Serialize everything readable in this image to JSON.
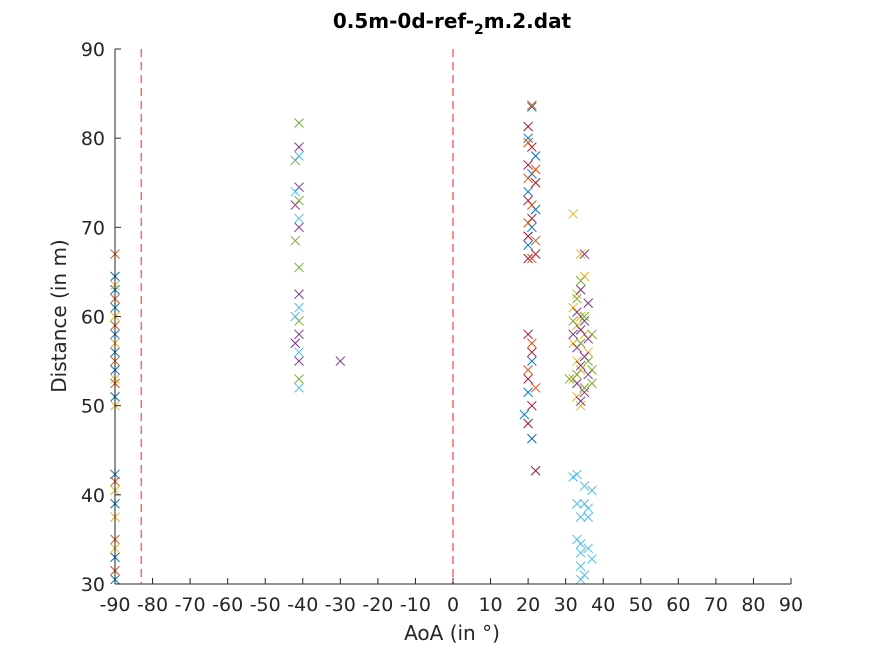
{
  "chart_data": {
    "type": "scatter",
    "title_main": "0.5m-0d-ref-",
    "title_sub": "2",
    "title_tail": "m.2.dat",
    "xlabel": "AoA (in °)",
    "ylabel": "Distance (in m)",
    "xlim": [
      -90,
      90
    ],
    "ylim": [
      30,
      90
    ],
    "xticks": [
      "-90",
      "-80",
      "-70",
      "-60",
      "-50",
      "-40",
      "-30",
      "-20",
      "-10",
      "0",
      "10",
      "20",
      "30",
      "40",
      "50",
      "60",
      "70",
      "80",
      "90"
    ],
    "yticks": [
      "30",
      "40",
      "50",
      "60",
      "70",
      "80",
      "90"
    ],
    "grid": false,
    "marker": "x",
    "vlines": [
      {
        "x": -83,
        "color": "#ff6666",
        "style": "dashed"
      },
      {
        "x": 0,
        "color": "#ff6666",
        "style": "dashed"
      }
    ],
    "colors": [
      "#0072bd",
      "#d95319",
      "#edb120",
      "#7e2f8e",
      "#77ac30",
      "#4dbeee",
      "#a2142f"
    ],
    "series": [
      {
        "values": [
          [
            -90,
            64.5
          ],
          [
            -90,
            63
          ],
          [
            -90,
            61
          ],
          [
            -90,
            58
          ],
          [
            -90,
            56
          ],
          [
            -90,
            54
          ],
          [
            -90,
            51
          ],
          [
            -90,
            42.3
          ],
          [
            -90,
            39
          ],
          [
            -90,
            33
          ],
          [
            -90,
            30.5
          ]
        ]
      },
      {
        "values": [
          [
            -90,
            67
          ],
          [
            -90,
            62
          ],
          [
            -90,
            59
          ],
          [
            -90,
            55
          ],
          [
            -90,
            52.5
          ],
          [
            -90,
            41.5
          ],
          [
            -90,
            35
          ],
          [
            -90,
            31.5
          ]
        ]
      },
      {
        "values": [
          [
            -90,
            63.5
          ],
          [
            -90,
            60
          ],
          [
            -90,
            57
          ],
          [
            -90,
            53
          ],
          [
            -90,
            50
          ],
          [
            -90,
            40.5
          ],
          [
            -90,
            37.5
          ],
          [
            -90,
            34
          ]
        ]
      },
      {
        "values": [
          [
            -41,
            79
          ],
          [
            -41,
            74.5
          ],
          [
            -41,
            70
          ],
          [
            -41,
            62.5
          ],
          [
            -41,
            58
          ],
          [
            -41,
            55
          ],
          [
            -30,
            55
          ],
          [
            -42,
            72.5
          ],
          [
            -42,
            57
          ]
        ]
      },
      {
        "values": [
          [
            -41,
            81.7
          ],
          [
            -41,
            73
          ],
          [
            -41,
            65.5
          ],
          [
            -41,
            59.5
          ],
          [
            -41,
            53
          ],
          [
            -42,
            68.5
          ],
          [
            -42,
            77.5
          ]
        ]
      },
      {
        "values": [
          [
            -41,
            78
          ],
          [
            -41,
            71
          ],
          [
            -41,
            61
          ],
          [
            -41,
            56
          ],
          [
            -41,
            52
          ],
          [
            -42,
            74
          ],
          [
            -42,
            60
          ]
        ]
      },
      {
        "values": [
          [
            20,
            81.3
          ],
          [
            21,
            79
          ],
          [
            20,
            77
          ],
          [
            22,
            75
          ],
          [
            20,
            73
          ],
          [
            21,
            71
          ],
          [
            20,
            69
          ],
          [
            22,
            67
          ],
          [
            20,
            66.5
          ],
          [
            20,
            58
          ],
          [
            21,
            56
          ],
          [
            20,
            53
          ],
          [
            21,
            50
          ],
          [
            20,
            48
          ],
          [
            22,
            42.7
          ]
        ]
      },
      {
        "values": [
          [
            21,
            83.5
          ],
          [
            20,
            80
          ],
          [
            22,
            78
          ],
          [
            21,
            76
          ],
          [
            20,
            74
          ],
          [
            22,
            72
          ],
          [
            21,
            70
          ],
          [
            20,
            68
          ],
          [
            21,
            55
          ],
          [
            20,
            51.5
          ],
          [
            21,
            46.3
          ],
          [
            19,
            49
          ]
        ]
      },
      {
        "values": [
          [
            21,
            83.7
          ],
          [
            20,
            79.5
          ],
          [
            22,
            76.5
          ],
          [
            20,
            75.5
          ],
          [
            21,
            72.5
          ],
          [
            20,
            70.5
          ],
          [
            22,
            68.5
          ],
          [
            21,
            66.5
          ],
          [
            21,
            57
          ],
          [
            20,
            54
          ],
          [
            22,
            52
          ]
        ]
      },
      {
        "values": [
          [
            32,
            71.5
          ],
          [
            34,
            67
          ],
          [
            35,
            64.5
          ],
          [
            33,
            62.5
          ],
          [
            32,
            61
          ],
          [
            34,
            60
          ],
          [
            33,
            59
          ],
          [
            35,
            58
          ],
          [
            32,
            57
          ],
          [
            36,
            56
          ],
          [
            33,
            55
          ],
          [
            34,
            54
          ],
          [
            32,
            53
          ],
          [
            35,
            52
          ],
          [
            33,
            51
          ],
          [
            34,
            50
          ]
        ]
      },
      {
        "values": [
          [
            35,
            67
          ],
          [
            34,
            63
          ],
          [
            36,
            61.5
          ],
          [
            33,
            60.5
          ],
          [
            35,
            59.5
          ],
          [
            34,
            58.5
          ],
          [
            32,
            58
          ],
          [
            36,
            57.5
          ],
          [
            33,
            56.5
          ],
          [
            35,
            55.5
          ],
          [
            34,
            54.5
          ],
          [
            36,
            53.5
          ],
          [
            33,
            52.5
          ],
          [
            35,
            51.5
          ],
          [
            34,
            50.5
          ]
        ]
      },
      {
        "values": [
          [
            34,
            64
          ],
          [
            33,
            62
          ],
          [
            35,
            60
          ],
          [
            32,
            59.5
          ],
          [
            34,
            57
          ],
          [
            36,
            55
          ],
          [
            33,
            53.5
          ],
          [
            35,
            52
          ],
          [
            37,
            58
          ],
          [
            37,
            54
          ],
          [
            37,
            52.5
          ],
          [
            31,
            53
          ]
        ]
      },
      {
        "values": [
          [
            33,
            42.3
          ],
          [
            32,
            42
          ],
          [
            35,
            41
          ],
          [
            37,
            40.5
          ],
          [
            33,
            39
          ],
          [
            35,
            39
          ],
          [
            36,
            38.5
          ],
          [
            34,
            37.5
          ],
          [
            36,
            37.5
          ],
          [
            33,
            35
          ],
          [
            34,
            34.5
          ],
          [
            36,
            34
          ],
          [
            34,
            33.5
          ],
          [
            37,
            32.8
          ],
          [
            34,
            32
          ],
          [
            35,
            31
          ],
          [
            34,
            30.5
          ]
        ]
      }
    ]
  }
}
